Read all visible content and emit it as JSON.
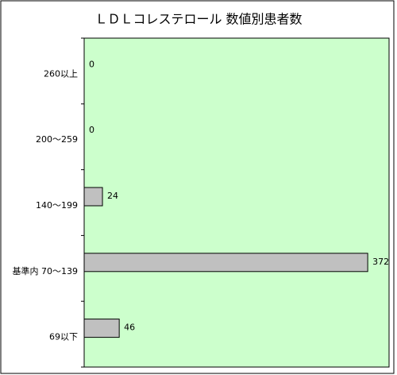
{
  "chart_data": {
    "type": "barh",
    "title": "ＬＤＬコレステロール 数値別患者数",
    "categories": [
      "260以上",
      "200～259",
      "140～199",
      "基準内 70～139",
      "69以下"
    ],
    "values": [
      0,
      0,
      24,
      372,
      46
    ],
    "color": "#c0c0c0",
    "plot_background": "#ccffcc",
    "xlim": [
      0,
      400
    ]
  }
}
